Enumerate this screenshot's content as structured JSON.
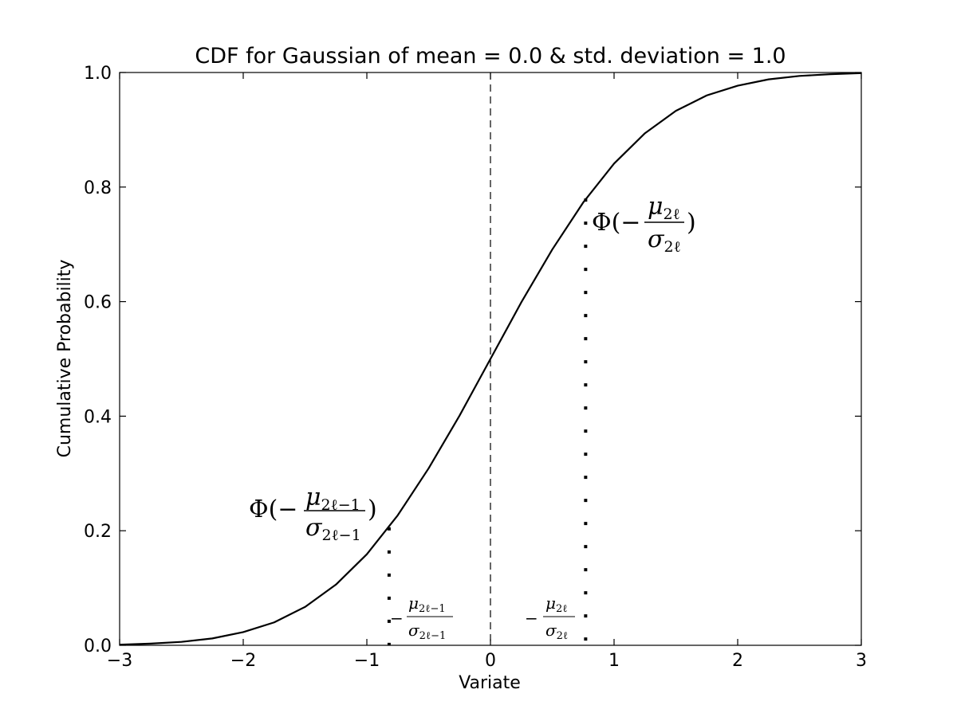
{
  "chart_data": {
    "type": "line",
    "title": "CDF for Gaussian of mean = 0.0 & std. deviation = 1.0",
    "xlabel": "Variate",
    "ylabel": "Cumulative Probability",
    "xlim": [
      -3,
      3
    ],
    "ylim": [
      0,
      1
    ],
    "x_ticks": [
      -3,
      -2,
      -1,
      0,
      1,
      2,
      3
    ],
    "x_tick_labels": [
      "−3",
      "−2",
      "−1",
      "0",
      "1",
      "2",
      "3"
    ],
    "y_ticks": [
      0,
      0.2,
      0.4,
      0.6,
      0.8,
      1.0
    ],
    "y_tick_labels": [
      "0.0",
      "0.2",
      "0.4",
      "0.6",
      "0.8",
      "1.0"
    ],
    "grid": false,
    "series": [
      {
        "style": "solid",
        "color": "#000000",
        "x": [
          -3.0,
          -2.75,
          -2.5,
          -2.25,
          -2.0,
          -1.75,
          -1.5,
          -1.25,
          -1.0,
          -0.75,
          -0.5,
          -0.25,
          0.0,
          0.25,
          0.5,
          0.75,
          1.0,
          1.25,
          1.5,
          1.75,
          2.0,
          2.25,
          2.5,
          2.75,
          3.0
        ],
        "y": [
          0.001,
          0.003,
          0.006,
          0.012,
          0.023,
          0.04,
          0.067,
          0.106,
          0.159,
          0.227,
          0.309,
          0.401,
          0.5,
          0.599,
          0.691,
          0.773,
          0.841,
          0.894,
          0.933,
          0.96,
          0.977,
          0.988,
          0.994,
          0.997,
          0.999
        ]
      }
    ],
    "reference_lines": [
      {
        "name": "mean-line",
        "style": "dashed",
        "x": 0.0
      },
      {
        "name": "left-threshold",
        "style": "dotted",
        "x": -0.82,
        "y_top": 0.206
      },
      {
        "name": "right-threshold",
        "style": "dotted",
        "x": 0.77,
        "y_top": 0.78
      }
    ],
    "annotations": {
      "phi_left": {
        "prefix": "Φ(−",
        "num": "μ",
        "num_sub": "2ℓ−1",
        "den": "σ",
        "den_sub": "2ℓ−1",
        "suffix": ")"
      },
      "phi_right": {
        "prefix": "Φ(−",
        "num": "μ",
        "num_sub": "2ℓ",
        "den": "σ",
        "den_sub": "2ℓ",
        "suffix": ")"
      },
      "x_left": {
        "prefix": "−",
        "num": "μ",
        "num_sub": "2ℓ−1",
        "den": "σ",
        "den_sub": "2ℓ−1"
      },
      "x_right": {
        "prefix": "−",
        "num": "μ",
        "num_sub": "2ℓ",
        "den": "σ",
        "den_sub": "2ℓ"
      }
    }
  }
}
